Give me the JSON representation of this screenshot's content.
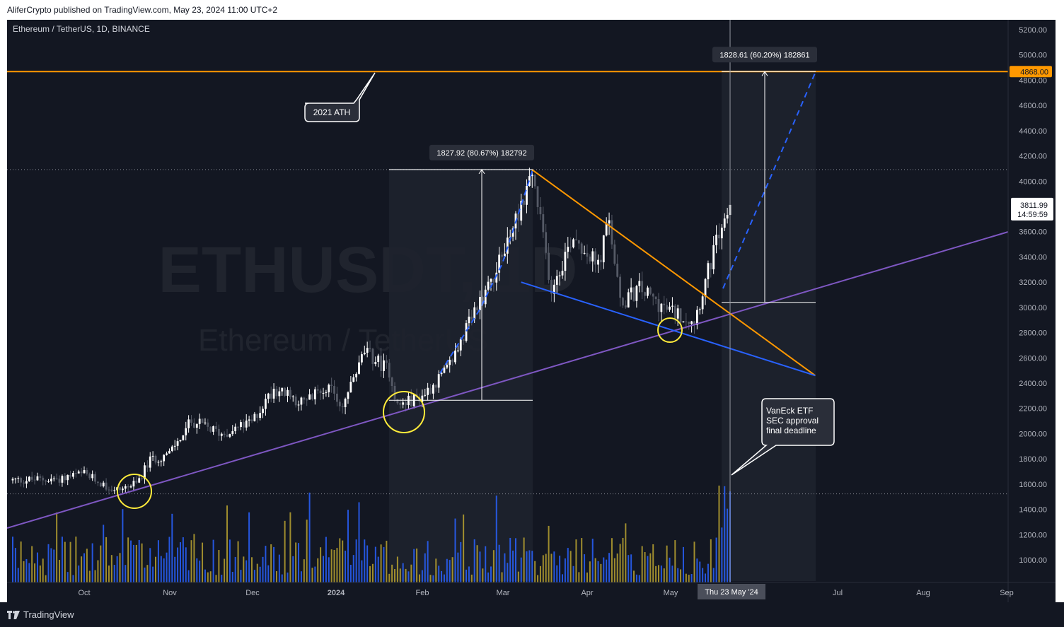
{
  "header": {
    "published": "AliferCrypto published on TradingView.com, May 23, 2024 11:00 UTC+2"
  },
  "symbol_line": "Ethereum / TetherUS, 1D, BINANCE",
  "watermark": {
    "symbol": "ETHUSDT, 1D",
    "name": "Ethereum / TetherUS"
  },
  "footer": {
    "logo_text": "TradingView"
  },
  "annotations": {
    "ath_label": "2021 ATH",
    "measure_1": "1827.92 (80.67%) 182792",
    "measure_2": "1828.61 (60.20%) 182861",
    "callout_lines": [
      "VanEck ETF",
      "SEC approval",
      "final deadline"
    ]
  },
  "price_scale": {
    "ticks": [
      "5200.00",
      "5000.00",
      "4800.00",
      "4600.00",
      "4400.00",
      "4200.00",
      "4000.00",
      "3800.00",
      "3600.00",
      "3400.00",
      "3200.00",
      "3000.00",
      "2800.00",
      "2600.00",
      "2400.00",
      "2200.00",
      "2000.00",
      "1800.00",
      "1600.00",
      "1400.00",
      "1200.00",
      "1000.00"
    ],
    "ath_badge": "4868.00",
    "last_price": "3811.99",
    "countdown": "14:59:59"
  },
  "time_scale": {
    "labels": [
      "Oct",
      "Nov",
      "Dec",
      "2024",
      "Feb",
      "Mar",
      "Apr",
      "May",
      "Jun",
      "Jul",
      "Aug",
      "Sep"
    ],
    "crosshair_date": "Thu 23 May '24"
  },
  "chart_data": {
    "type": "candlestick",
    "title": "Ethereum / TetherUS, 1D, BINANCE",
    "ylim": [
      800,
      5300
    ],
    "y_ticks": [
      5200,
      5000,
      4800,
      4600,
      4400,
      4200,
      4000,
      3800,
      3600,
      3400,
      3200,
      3000,
      2800,
      2600,
      2400,
      2200,
      2000,
      1800,
      1600,
      1400,
      1200,
      1000
    ],
    "x_labels": [
      "Oct",
      "Nov",
      "Dec",
      "2024",
      "Feb",
      "Mar",
      "Apr",
      "May",
      "Jun",
      "Jul",
      "Aug",
      "Sep"
    ],
    "ath_level": 4868,
    "last_price": 3811.99,
    "price_path": [
      {
        "date": "2023-09-05",
        "close": 1630
      },
      {
        "date": "2023-09-20",
        "close": 1640
      },
      {
        "date": "2023-10-01",
        "close": 1680
      },
      {
        "date": "2023-10-12",
        "close": 1550
      },
      {
        "date": "2023-10-20",
        "close": 1600
      },
      {
        "date": "2023-10-25",
        "close": 1790
      },
      {
        "date": "2023-11-01",
        "close": 1840
      },
      {
        "date": "2023-11-09",
        "close": 2100
      },
      {
        "date": "2023-11-20",
        "close": 2000
      },
      {
        "date": "2023-12-01",
        "close": 2090
      },
      {
        "date": "2023-12-09",
        "close": 2360
      },
      {
        "date": "2023-12-20",
        "close": 2240
      },
      {
        "date": "2023-12-28",
        "close": 2380
      },
      {
        "date": "2024-01-03",
        "close": 2220
      },
      {
        "date": "2024-01-11",
        "close": 2650
      },
      {
        "date": "2024-01-20",
        "close": 2500
      },
      {
        "date": "2024-01-23",
        "close": 2220
      },
      {
        "date": "2024-02-01",
        "close": 2300
      },
      {
        "date": "2024-02-10",
        "close": 2500
      },
      {
        "date": "2024-02-20",
        "close": 2960
      },
      {
        "date": "2024-03-01",
        "close": 3400
      },
      {
        "date": "2024-03-12",
        "close": 4060
      },
      {
        "date": "2024-03-19",
        "close": 3150
      },
      {
        "date": "2024-03-27",
        "close": 3580
      },
      {
        "date": "2024-04-05",
        "close": 3320
      },
      {
        "date": "2024-04-09",
        "close": 3700
      },
      {
        "date": "2024-04-13",
        "close": 3020
      },
      {
        "date": "2024-04-20",
        "close": 3150
      },
      {
        "date": "2024-04-30",
        "close": 2980
      },
      {
        "date": "2024-05-10",
        "close": 2900
      },
      {
        "date": "2024-05-20",
        "close": 3660
      },
      {
        "date": "2024-05-23",
        "close": 3811.99
      }
    ],
    "measurements": [
      {
        "from_date": "2024-01-23",
        "from_price": 2264,
        "to_date": "2024-03-12",
        "to_price": 4092,
        "label": "1827.92 (80.67%) 182792"
      },
      {
        "from_date": "2024-05-23",
        "from_price": 3040,
        "to_date": "2024-06-23",
        "to_price": 4868,
        "label": "1828.61 (60.20%) 182861"
      }
    ],
    "trendlines": [
      {
        "name": "purple support",
        "color": "#7e57c2",
        "points": [
          [
            "2023-09-05",
            1250
          ],
          [
            "2024-09-01",
            3600
          ]
        ]
      },
      {
        "name": "orange descending",
        "color": "#ff9800",
        "points": [
          [
            "2024-03-12",
            4090
          ],
          [
            "2024-06-23",
            2460
          ]
        ]
      },
      {
        "name": "blue lower",
        "color": "#2962ff",
        "points": [
          [
            "2024-03-08",
            3200
          ],
          [
            "2024-06-23",
            2460
          ]
        ]
      }
    ],
    "volume": {
      "colors": {
        "up": "#2962ff",
        "down": "#b8a230"
      }
    },
    "colors": {
      "background": "#131722",
      "up_candle": "#ffffff",
      "down_candle": "#555a66",
      "ath_line": "#ff9800",
      "highlight_circle": "#ffeb3b"
    }
  }
}
